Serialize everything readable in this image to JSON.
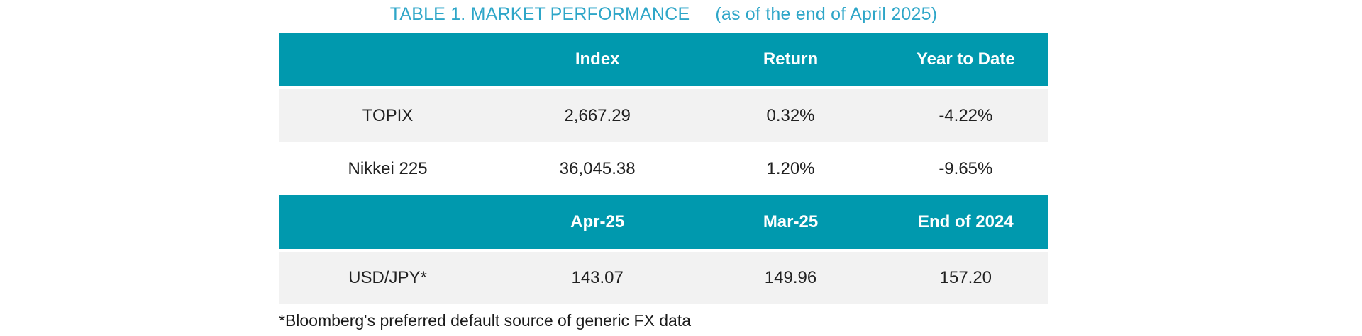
{
  "title": {
    "main": "TABLE 1. MARKET PERFORMANCE",
    "sub": "(as of the end of April 2025)"
  },
  "colors": {
    "header_band": "#0099ae",
    "title_text": "#2ea6c8",
    "alt_row_bg": "#f2f2f2",
    "header_text": "#ffffff",
    "body_text": "#212121"
  },
  "chart_data": {
    "type": "table",
    "title": "TABLE 1. MARKET PERFORMANCE (as of the end of April 2025)",
    "sections": [
      {
        "headers": [
          "",
          "Index",
          "Return",
          "Year to Date"
        ],
        "rows": [
          {
            "label": "TOPIX",
            "values": [
              "2,667.29",
              "0.32%",
              "-4.22%"
            ]
          },
          {
            "label": "Nikkei 225",
            "values": [
              "36,045.38",
              "1.20%",
              "-9.65%"
            ]
          }
        ]
      },
      {
        "headers": [
          "",
          "Apr-25",
          "Mar-25",
          "End of 2024"
        ],
        "rows": [
          {
            "label": "USD/JPY*",
            "values": [
              "143.07",
              "149.96",
              "157.20"
            ]
          }
        ]
      }
    ]
  },
  "footnote": "*Bloomberg's preferred default source of generic FX data"
}
